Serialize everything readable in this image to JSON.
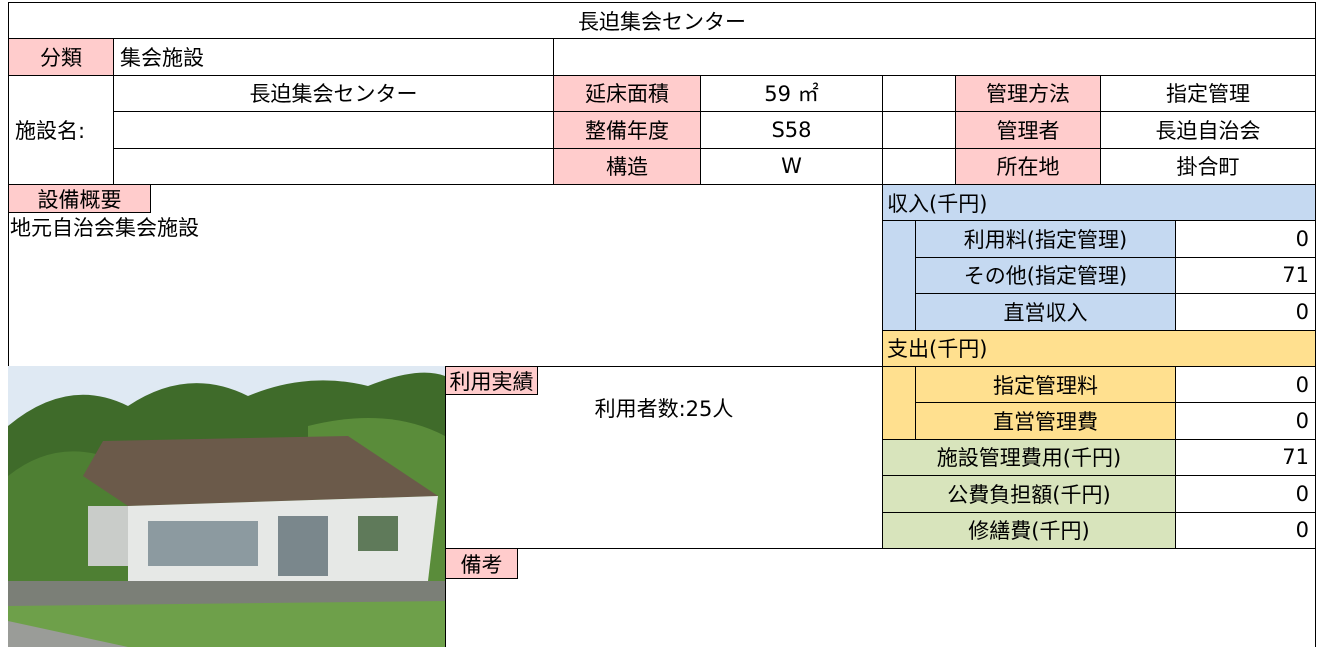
{
  "title": "長迫集会センター",
  "classification": {
    "label": "分類",
    "value": "集会施設"
  },
  "facility_name": {
    "label": "施設名:",
    "value": "長迫集会センター"
  },
  "details_left": [
    {
      "label": "延床面積",
      "value": "59 ㎡"
    },
    {
      "label": "整備年度",
      "value": "S58"
    },
    {
      "label": "構造",
      "value": "W"
    }
  ],
  "details_right": [
    {
      "label": "管理方法",
      "value": "指定管理"
    },
    {
      "label": "管理者",
      "value": "長迫自治会"
    },
    {
      "label": "所在地",
      "value": "掛合町"
    }
  ],
  "equipment": {
    "label": "設備概要",
    "text": "地元自治会集会施設"
  },
  "usage": {
    "label": "利用実績",
    "text": "利用者数:25人"
  },
  "remarks": {
    "label": "備考"
  },
  "income": {
    "label": "収入(千円)",
    "rows": [
      {
        "label": "利用料(指定管理)",
        "value": 0
      },
      {
        "label": "その他(指定管理)",
        "value": 71
      },
      {
        "label": "直営収入",
        "value": 0
      }
    ]
  },
  "expense": {
    "label": "支出(千円)",
    "rows": [
      {
        "label": "指定管理料",
        "value": 0
      },
      {
        "label": "直営管理費",
        "value": 0
      }
    ]
  },
  "totals": [
    {
      "label": "施設管理費用(千円)",
      "value": 71
    },
    {
      "label": "公費負担額(千円)",
      "value": 0
    },
    {
      "label": "修繕費(千円)",
      "value": 0
    }
  ]
}
